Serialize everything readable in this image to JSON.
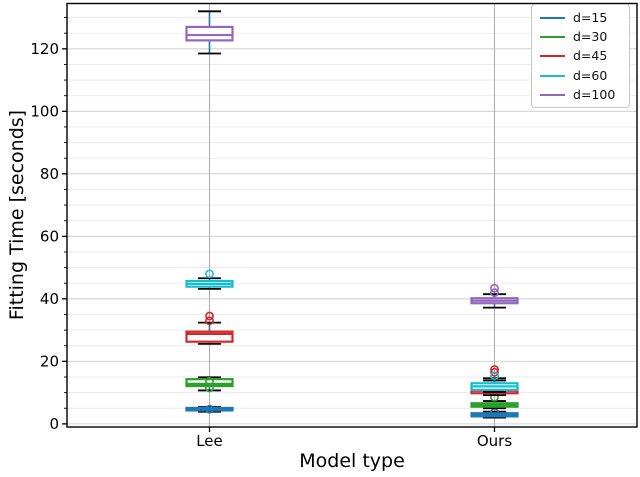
{
  "chart_data": {
    "type": "boxplot",
    "title": "",
    "xlabel": "Model type",
    "ylabel": "Fitting Time [seconds]",
    "categories": [
      "Lee",
      "Ours"
    ],
    "ylim": [
      -1,
      134.5
    ],
    "yticks": [
      0,
      20,
      40,
      60,
      80,
      100,
      120
    ],
    "minor_grid_step": 5,
    "minor_grid_max": 130,
    "grid": "horizontal major+minor, vertical line at each category",
    "legend": {
      "position": "upper right",
      "labels": [
        "d=15",
        "d=30",
        "d=45",
        "d=60",
        "d=100"
      ]
    },
    "style": {
      "background": "#ffffff",
      "axis_color": "#000000",
      "whisker_color": "#1f77b4",
      "cap_color": "#000000",
      "major_grid_color": "#d3d3d3",
      "minor_grid_color": "#e9e9e9",
      "vertical_grid_color": "#b0b0b0",
      "box_fill": "#ffffff"
    },
    "series": [
      {
        "label": "d=15",
        "color": "#1f77b4",
        "groups": {
          "Lee": {
            "whislo": 3.9,
            "q1": 4.3,
            "med": 4.7,
            "q3": 5.1,
            "whishi": 5.4,
            "fliers": [
              4.7
            ]
          },
          "Ours": {
            "whislo": 2.0,
            "q1": 2.4,
            "med": 2.9,
            "q3": 3.4,
            "whishi": 3.9,
            "fliers": [
              3.7
            ]
          }
        }
      },
      {
        "label": "d=30",
        "color": "#2ca02c",
        "groups": {
          "Lee": {
            "whislo": 10.7,
            "q1": 12.1,
            "med": 12.8,
            "q3": 14.3,
            "whishi": 14.9,
            "fliers": [
              13.6,
              11.5
            ]
          },
          "Ours": {
            "whislo": 5.0,
            "q1": 5.5,
            "med": 6.0,
            "q3": 6.6,
            "whishi": 7.3,
            "fliers": [
              8.5
            ]
          }
        }
      },
      {
        "label": "d=45",
        "color": "#d62728",
        "groups": {
          "Lee": {
            "whislo": 25.6,
            "q1": 26.3,
            "med": 28.8,
            "q3": 29.5,
            "whishi": 32.4,
            "fliers": [
              34.5,
              33.0
            ]
          },
          "Ours": {
            "whislo": 9.2,
            "q1": 9.8,
            "med": 10.6,
            "q3": 11.4,
            "whishi": 13.9,
            "fliers": [
              17.4,
              16.5
            ]
          }
        }
      },
      {
        "label": "d=60",
        "color": "#17becf",
        "groups": {
          "Lee": {
            "whislo": 43.2,
            "q1": 43.9,
            "med": 44.8,
            "q3": 45.7,
            "whishi": 46.6,
            "fliers": [
              48.0
            ]
          },
          "Ours": {
            "whislo": 10.2,
            "q1": 10.9,
            "med": 12.0,
            "q3": 13.0,
            "whishi": 14.6,
            "fliers": [
              15.4
            ]
          }
        }
      },
      {
        "label": "d=100",
        "color": "#9467bd",
        "groups": {
          "Lee": {
            "whislo": 118.5,
            "q1": 122.7,
            "med": 124.4,
            "q3": 127.0,
            "whishi": 132.0,
            "fliers": []
          },
          "Ours": {
            "whislo": 37.2,
            "q1": 38.6,
            "med": 39.4,
            "q3": 40.2,
            "whishi": 41.5,
            "fliers": [
              43.4,
              42.0
            ]
          }
        }
      }
    ]
  }
}
